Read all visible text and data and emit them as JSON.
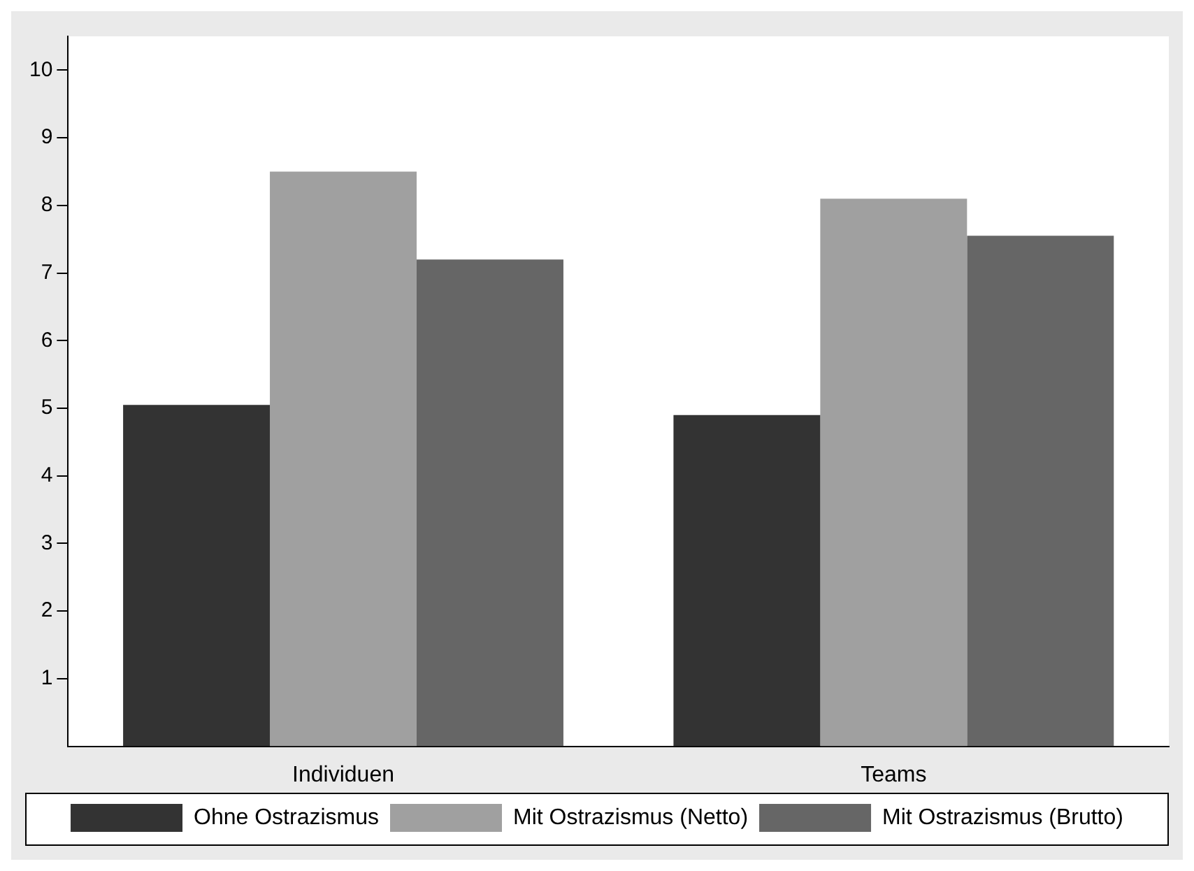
{
  "chart_data": {
    "type": "bar",
    "categories": [
      "Individuen",
      "Teams"
    ],
    "series": [
      {
        "name": "Ohne Ostrazismus",
        "color": "#333333",
        "values": [
          5.05,
          4.9
        ]
      },
      {
        "name": "Mit Ostrazismus (Netto)",
        "color": "#a0a0a0",
        "values": [
          8.5,
          8.1
        ]
      },
      {
        "name": "Mit Ostrazismus (Brutto)",
        "color": "#666666",
        "values": [
          7.2,
          7.55
        ]
      }
    ],
    "ylim": [
      0,
      10.5
    ],
    "yticks": [
      1,
      2,
      3,
      4,
      5,
      6,
      7,
      8,
      9,
      10
    ],
    "grid": false,
    "legend": "bottom"
  }
}
